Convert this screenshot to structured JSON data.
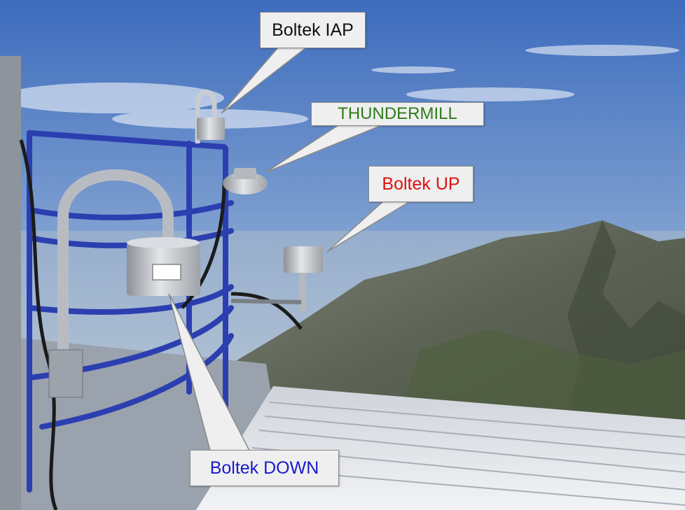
{
  "labels": {
    "boltek_iap": {
      "text": "Boltek IAP",
      "color": "#111111"
    },
    "thundermill": {
      "text": "THUNDERMILL",
      "color": "#2e7d1a"
    },
    "boltek_up": {
      "text": "Boltek UP",
      "color": "#e01010"
    },
    "boltek_down": {
      "text": "Boltek DOWN",
      "color": "#1a1acc"
    }
  },
  "palette": {
    "sky_top": "#3f6fbf",
    "sky_bottom": "#c9d6e6",
    "mountain": "#6b705f",
    "railing": "#2b3fb0",
    "roof": "#e6e8ec",
    "sensor": "#c9ccd0"
  }
}
